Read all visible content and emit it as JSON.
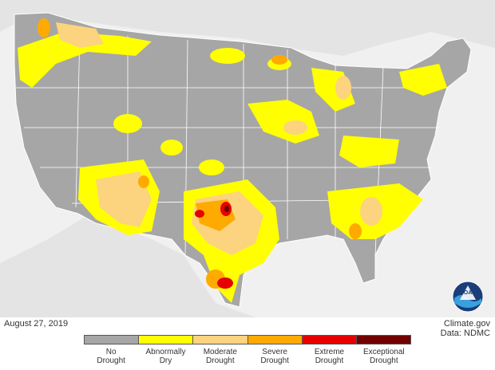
{
  "map": {
    "date": "August 27, 2019",
    "credit_site": "Climate.gov",
    "credit_data": "Data: NDMC",
    "logo_text": "NOAA"
  },
  "legend": {
    "items": [
      {
        "label": "No\nDrought",
        "color": "#a6a6a6"
      },
      {
        "label": "Abnormally\nDry",
        "color": "#ffff00"
      },
      {
        "label": "Moderate\nDrought",
        "color": "#fcd37f"
      },
      {
        "label": "Severe\nDrought",
        "color": "#ffaa00"
      },
      {
        "label": "Extreme\nDrought",
        "color": "#e60000"
      },
      {
        "label": "Exceptional\nDrought",
        "color": "#730000"
      }
    ]
  }
}
